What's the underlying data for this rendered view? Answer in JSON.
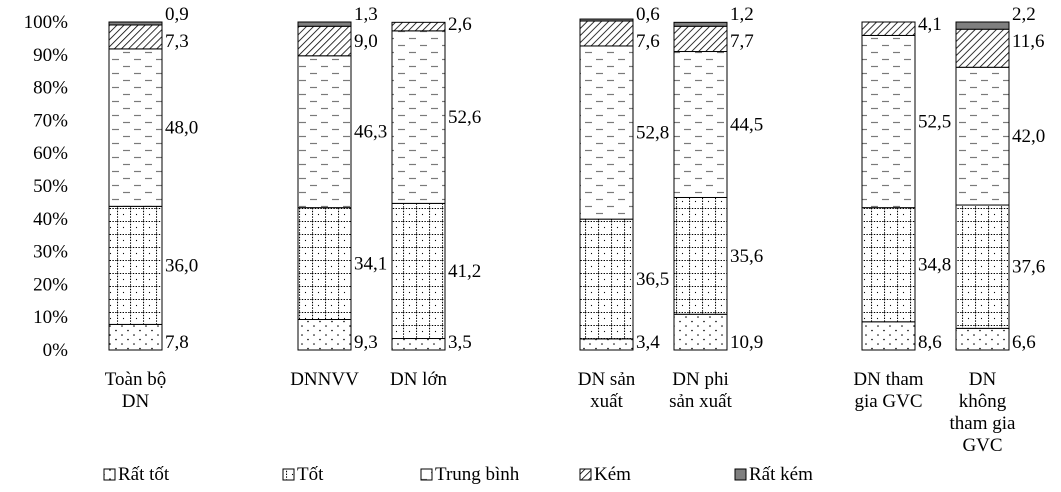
{
  "chart_data": {
    "type": "bar",
    "stacked": true,
    "percent": true,
    "ylim": [
      0,
      100
    ],
    "y_ticks": [
      "0%",
      "10%",
      "20%",
      "30%",
      "40%",
      "50%",
      "60%",
      "70%",
      "80%",
      "90%",
      "100%"
    ],
    "grid": false,
    "legend_position": "bottom",
    "categories": [
      [
        "Toàn bộ",
        "DN"
      ],
      [
        "DNNVV"
      ],
      [
        "DN lớn"
      ],
      [
        "DN sản",
        "xuất"
      ],
      [
        "DN phi",
        "sản xuất"
      ],
      [
        "DN tham",
        "gia GVC"
      ],
      [
        "DN",
        "không",
        "tham gia",
        "GVC"
      ]
    ],
    "series": [
      {
        "name": "Rất tốt",
        "values": [
          7.8,
          9.3,
          3.5,
          3.4,
          10.9,
          8.6,
          6.6
        ],
        "labels": [
          "7,8",
          "9,3",
          "3,5",
          "3,4",
          "10,9",
          "8,6",
          "6,6"
        ]
      },
      {
        "name": "Tốt",
        "values": [
          36.0,
          34.1,
          41.2,
          36.5,
          35.6,
          34.8,
          37.6
        ],
        "labels": [
          "36,0",
          "34,1",
          "41,2",
          "36,5",
          "35,6",
          "34,8",
          "37,6"
        ]
      },
      {
        "name": "Trung bình",
        "values": [
          48.0,
          46.3,
          52.6,
          52.8,
          44.5,
          52.5,
          42.0
        ],
        "labels": [
          "48,0",
          "46,3",
          "52,6",
          "52,8",
          "44,5",
          "52,5",
          "42,0"
        ]
      },
      {
        "name": "Kém",
        "values": [
          7.3,
          9.0,
          2.6,
          7.6,
          7.7,
          4.1,
          11.6
        ],
        "labels": [
          "7,3",
          "9,0",
          "2,6",
          "7,6",
          "7,7",
          "4,1",
          "11,6"
        ]
      },
      {
        "name": "Rất kém",
        "values": [
          0.9,
          1.3,
          0,
          0.6,
          1.2,
          0,
          2.2
        ],
        "labels": [
          "0,9",
          "1,3",
          "",
          "0,6",
          "1,2",
          "",
          "2,2"
        ]
      }
    ],
    "colors": {
      "very_poor": "#7f7f7f",
      "outline": "#000000"
    }
  }
}
